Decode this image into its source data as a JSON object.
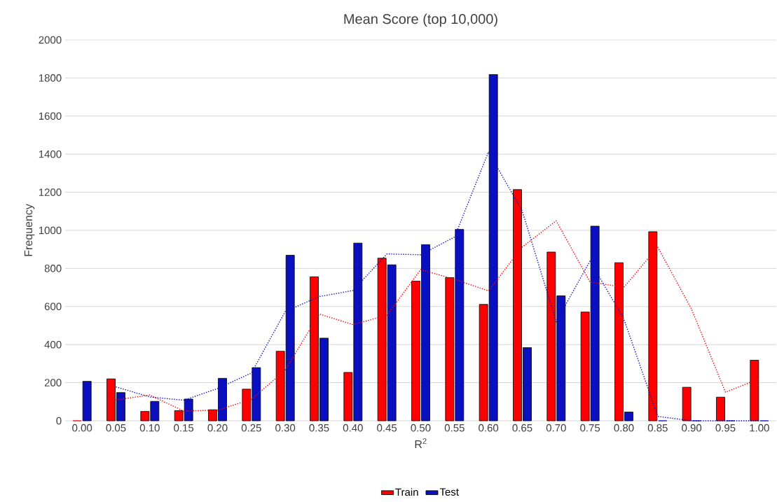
{
  "chart_data": {
    "type": "bar",
    "title": "Mean Score (top 10,000)",
    "xlabel": "R$^{2}$",
    "ylabel": "Frequency",
    "categories": [
      "0.00",
      "0.05",
      "0.10",
      "0.15",
      "0.20",
      "0.25",
      "0.30",
      "0.35",
      "0.40",
      "0.45",
      "0.50",
      "0.55",
      "0.60",
      "0.65",
      "0.70",
      "0.75",
      "0.80",
      "0.85",
      "0.90",
      "0.95",
      "1.00"
    ],
    "series": [
      {
        "name": "Train",
        "color": "#ff0000",
        "values": [
          0,
          220,
          49,
          53,
          58,
          166,
          365,
          756,
          254,
          854,
          733,
          752,
          611,
          1214,
          886,
          571,
          830,
          993,
          176,
          124,
          318
        ]
      },
      {
        "name": "Test",
        "color": "#0a0fbf",
        "values": [
          207,
          148,
          102,
          114,
          223,
          279,
          869,
          434,
          933,
          819,
          925,
          1005,
          1818,
          384,
          656,
          1022,
          46,
          0,
          0,
          0,
          0
        ]
      },
      {
        "type": "line",
        "color": "#ff0000",
        "line_style": "dotted",
        "marker": "none",
        "values": [
          null,
          110,
          135,
          51,
          56,
          112,
          266,
          561,
          505,
          554,
          794,
          743,
          682,
          913,
          1050,
          729,
          701,
          912,
          585,
          150,
          221
        ]
      },
      {
        "type": "line",
        "color": "#0a0fbf",
        "line_style": "dotted",
        "marker": "none",
        "values": [
          null,
          178,
          125,
          108,
          169,
          251,
          574,
          652,
          684,
          876,
          872,
          965,
          1412,
          1101,
          520,
          839,
          534,
          23,
          0,
          0,
          0
        ]
      }
    ],
    "ylim": [
      0,
      2000
    ],
    "yticks": [
      0,
      200,
      400,
      600,
      800,
      1000,
      1200,
      1400,
      1600,
      1800,
      2000
    ],
    "grid": "y",
    "legend": "bottom"
  }
}
